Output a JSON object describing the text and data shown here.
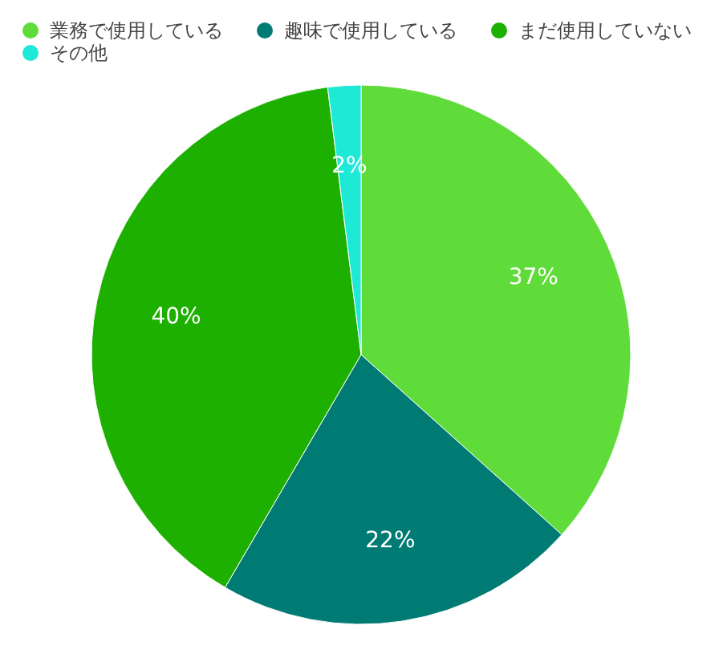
{
  "chart_data": {
    "type": "pie",
    "categories": [
      "業務で使用している",
      "趣味で使用している",
      "まだ使用していない",
      "その他"
    ],
    "values": [
      37,
      22,
      40,
      2
    ],
    "colors": [
      "#5fdb3a",
      "#007b73",
      "#1eb000",
      "#1ee8d6"
    ],
    "value_labels": [
      "37%",
      "22%",
      "40%",
      "2%"
    ],
    "legend": "top"
  }
}
